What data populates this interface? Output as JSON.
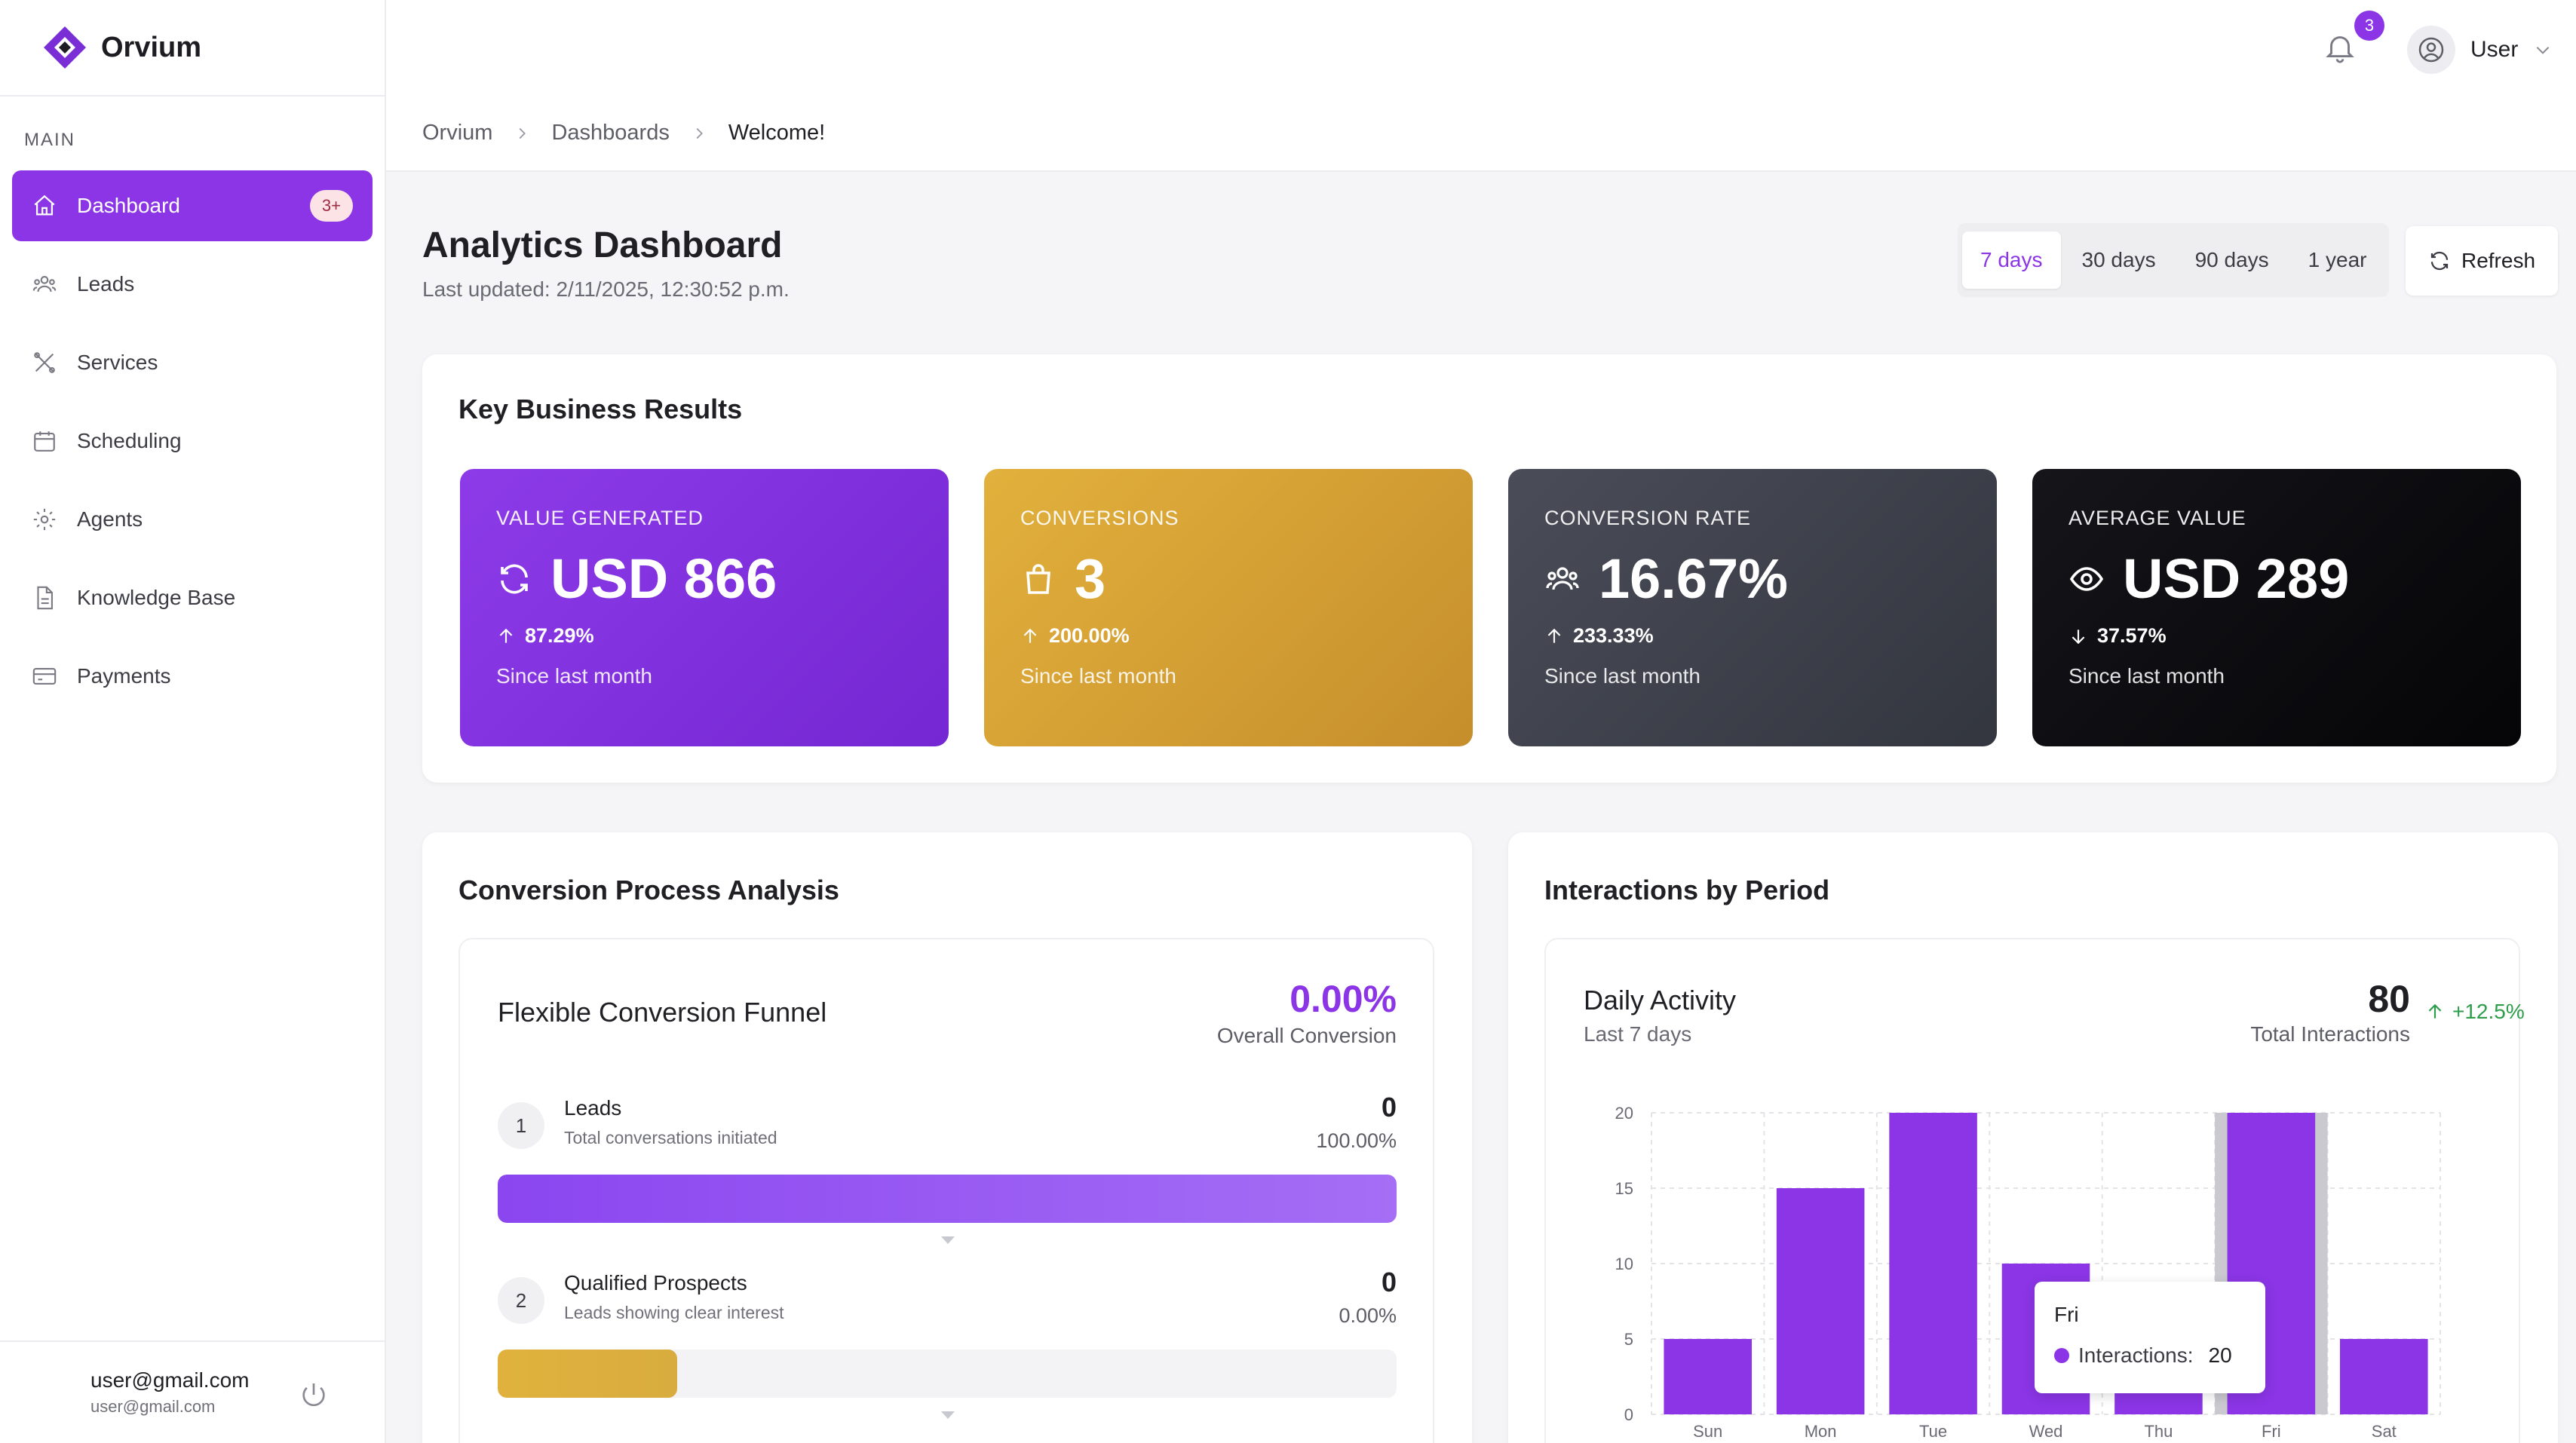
{
  "brand": {
    "name": "Orvium"
  },
  "sidebar": {
    "section_label": "MAIN",
    "items": [
      {
        "label": "Dashboard",
        "icon": "home-icon",
        "badge": "3+",
        "active": true
      },
      {
        "label": "Leads",
        "icon": "users-icon"
      },
      {
        "label": "Services",
        "icon": "tools-icon"
      },
      {
        "label": "Scheduling",
        "icon": "calendar-icon"
      },
      {
        "label": "Agents",
        "icon": "gear-icon"
      },
      {
        "label": "Knowledge Base",
        "icon": "document-icon"
      },
      {
        "label": "Payments",
        "icon": "credit-card-icon"
      }
    ],
    "user": {
      "name": "user@gmail.com",
      "email": "user@gmail.com"
    }
  },
  "topbar": {
    "notification_count": "3",
    "user_label": "User",
    "breadcrumb": [
      "Orvium",
      "Dashboards",
      "Welcome!"
    ]
  },
  "header": {
    "title": "Analytics Dashboard",
    "last_updated": "Last updated: 2/11/2025, 12:30:52 p.m.",
    "ranges": [
      "7 days",
      "30 days",
      "90 days",
      "1 year"
    ],
    "selected_range": "7 days",
    "refresh_label": "Refresh"
  },
  "key_results": {
    "title": "Key Business Results",
    "cards": [
      {
        "label": "VALUE GENERATED",
        "value": "USD 866",
        "change": "87.29%",
        "direction": "up",
        "since": "Since last month",
        "icon": "refresh-icon",
        "color": "#8b35e6"
      },
      {
        "label": "CONVERSIONS",
        "value": "3",
        "change": "200.00%",
        "direction": "up",
        "since": "Since last month",
        "icon": "shopping-bag-icon",
        "color": "#d9a437"
      },
      {
        "label": "CONVERSION RATE",
        "value": "16.67%",
        "change": "233.33%",
        "direction": "up",
        "since": "Since last month",
        "icon": "users-icon",
        "color": "#3d404a"
      },
      {
        "label": "AVERAGE VALUE",
        "value": "USD 289",
        "change": "37.57%",
        "direction": "down",
        "since": "Since last month",
        "icon": "eye-icon",
        "color": "#0c0c10"
      }
    ]
  },
  "conversion": {
    "title": "Conversion Process Analysis",
    "funnel_title": "Flexible Conversion Funnel",
    "overall_value": "0.00%",
    "overall_label": "Overall Conversion",
    "steps": [
      {
        "num": "1",
        "name": "Leads",
        "desc": "Total conversations initiated",
        "value": "0",
        "percent": "100.00%",
        "fill": 1.0,
        "color": "#8b46f0"
      },
      {
        "num": "2",
        "name": "Qualified Prospects",
        "desc": "Leads showing clear interest",
        "value": "0",
        "percent": "0.00%",
        "fill": 0.2,
        "color": "#e0b23d"
      }
    ]
  },
  "interactions": {
    "title": "Interactions by Period",
    "chart_title": "Daily Activity",
    "chart_sub": "Last 7 days",
    "total_value": "80",
    "total_label": "Total Interactions",
    "change": "+12.5%",
    "tooltip": {
      "day": "Fri",
      "label": "Interactions:",
      "value": "20"
    }
  },
  "chart_data": {
    "type": "bar",
    "categories": [
      "Sun",
      "Mon",
      "Tue",
      "Wed",
      "Thu",
      "Fri",
      "Sat"
    ],
    "series": [
      {
        "name": "Interactions",
        "values": [
          5,
          15,
          20,
          10,
          5,
          20,
          5
        ]
      }
    ],
    "ylim": [
      0,
      20
    ],
    "yticks": [
      0,
      5,
      10,
      15,
      20
    ],
    "grid": true,
    "highlight": "Fri",
    "color": "#8b35e6"
  }
}
